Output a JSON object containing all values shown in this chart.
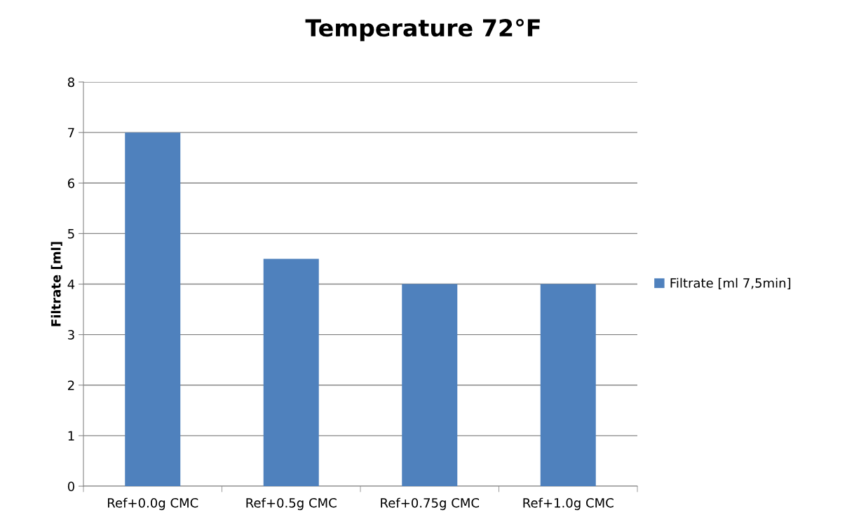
{
  "chart_data": {
    "type": "bar",
    "title": "Temperature 72°F",
    "ylabel": "Filtrate [ml]",
    "categories": [
      "Ref+0.0g CMC",
      "Ref+0.5g CMC",
      "Ref+0.75g CMC",
      "Ref+1.0g CMC"
    ],
    "series": [
      {
        "name": "Filtrate [ml 7,5min]",
        "color": "#4f81bd",
        "values": [
          7,
          4.5,
          4,
          4
        ]
      }
    ],
    "ylim": [
      0,
      8
    ],
    "yticks": [
      0,
      1,
      2,
      3,
      4,
      5,
      6,
      7,
      8
    ],
    "grid": "y",
    "legend": "right"
  }
}
